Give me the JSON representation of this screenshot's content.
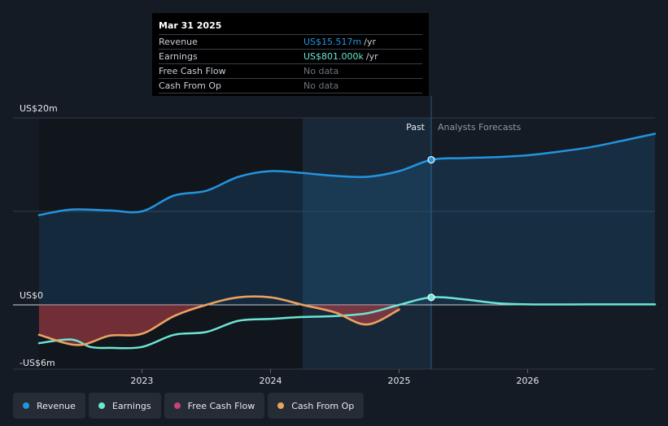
{
  "tooltip": {
    "date": "Mar 31 2025",
    "rows": [
      {
        "label": "Revenue",
        "value": "US$15.517m",
        "unit": "/yr",
        "color": "#2394df"
      },
      {
        "label": "Earnings",
        "value": "US$801.000k",
        "unit": "/yr",
        "color": "#6ce5d4"
      },
      {
        "label": "Free Cash Flow",
        "value": "No data",
        "unit": "",
        "color": "#6d7480"
      },
      {
        "label": "Cash From Op",
        "value": "No data",
        "unit": "",
        "color": "#6d7480"
      }
    ]
  },
  "labels": {
    "past": "Past",
    "forecast": "Analysts Forecasts"
  },
  "legend": [
    {
      "label": "Revenue",
      "color": "#2394df"
    },
    {
      "label": "Earnings",
      "color": "#6ce5d4"
    },
    {
      "label": "Free Cash Flow",
      "color": "#c2447a"
    },
    {
      "label": "Cash From Op",
      "color": "#e8a45e"
    }
  ],
  "chart_data": {
    "type": "line",
    "title": "",
    "xlabel": "",
    "ylabel": "",
    "y_tick_labels": [
      {
        "value": 20,
        "label": "US$20m"
      },
      {
        "value": 0,
        "label": "US$0"
      },
      {
        "value": -6,
        "label": "-US$6m"
      }
    ],
    "x_ticks": [
      {
        "value": 2023.0,
        "label": "2023"
      },
      {
        "value": 2024.0,
        "label": "2024"
      },
      {
        "value": 2025.0,
        "label": "2025"
      },
      {
        "value": 2026.0,
        "label": "2026"
      }
    ],
    "ylim": [
      -6,
      20
    ],
    "xlim": [
      2022.2,
      2026.99
    ],
    "gridlines": [
      20,
      10,
      0,
      -6
    ],
    "past_end": 2025.25,
    "shade_start": 2024.25,
    "series": [
      {
        "name": "Revenue",
        "color": "#2394df",
        "points": [
          [
            2022.2,
            9.6
          ],
          [
            2022.45,
            10.2
          ],
          [
            2022.75,
            10.1
          ],
          [
            2023.0,
            10.0
          ],
          [
            2023.25,
            11.7
          ],
          [
            2023.5,
            12.2
          ],
          [
            2023.75,
            13.7
          ],
          [
            2024.0,
            14.3
          ],
          [
            2024.25,
            14.1
          ],
          [
            2024.5,
            13.8
          ],
          [
            2024.75,
            13.7
          ],
          [
            2025.0,
            14.3
          ],
          [
            2025.25,
            15.517
          ],
          [
            2025.5,
            15.7
          ],
          [
            2025.75,
            15.8
          ],
          [
            2026.0,
            16.0
          ],
          [
            2026.25,
            16.4
          ],
          [
            2026.5,
            16.9
          ],
          [
            2026.75,
            17.6
          ],
          [
            2026.99,
            18.3
          ]
        ]
      },
      {
        "name": "Earnings",
        "color": "#6ce5d4",
        "points": [
          [
            2022.2,
            -4.1
          ],
          [
            2022.45,
            -3.7
          ],
          [
            2022.6,
            -4.5
          ],
          [
            2022.75,
            -4.6
          ],
          [
            2023.0,
            -4.5
          ],
          [
            2023.25,
            -3.2
          ],
          [
            2023.5,
            -2.9
          ],
          [
            2023.75,
            -1.7
          ],
          [
            2024.0,
            -1.5
          ],
          [
            2024.25,
            -1.3
          ],
          [
            2024.5,
            -1.2
          ],
          [
            2024.75,
            -0.9
          ],
          [
            2025.0,
            0.0
          ],
          [
            2025.25,
            0.801
          ],
          [
            2025.5,
            0.6
          ],
          [
            2025.75,
            0.2
          ],
          [
            2026.0,
            0.05
          ],
          [
            2026.5,
            0.05
          ],
          [
            2026.99,
            0.05
          ]
        ]
      },
      {
        "name": "Free Cash Flow",
        "color": "#c2447a",
        "points": [
          [
            2022.2,
            -3.2
          ],
          [
            2022.5,
            -4.3
          ],
          [
            2022.75,
            -3.3
          ],
          [
            2023.0,
            -3.1
          ],
          [
            2023.25,
            -1.2
          ],
          [
            2023.5,
            0.0
          ],
          [
            2023.75,
            0.8
          ],
          [
            2024.0,
            0.8
          ],
          [
            2024.25,
            0.0
          ],
          [
            2024.5,
            -0.8
          ],
          [
            2024.75,
            -2.1
          ],
          [
            2025.0,
            -0.5
          ]
        ]
      },
      {
        "name": "Cash From Op",
        "color": "#e8a45e",
        "points": [
          [
            2022.2,
            -3.2
          ],
          [
            2022.5,
            -4.3
          ],
          [
            2022.75,
            -3.3
          ],
          [
            2023.0,
            -3.1
          ],
          [
            2023.25,
            -1.2
          ],
          [
            2023.5,
            0.0
          ],
          [
            2023.75,
            0.8
          ],
          [
            2024.0,
            0.8
          ],
          [
            2024.25,
            0.0
          ],
          [
            2024.5,
            -0.8
          ],
          [
            2024.75,
            -2.1
          ],
          [
            2025.0,
            -0.5
          ]
        ]
      }
    ]
  }
}
